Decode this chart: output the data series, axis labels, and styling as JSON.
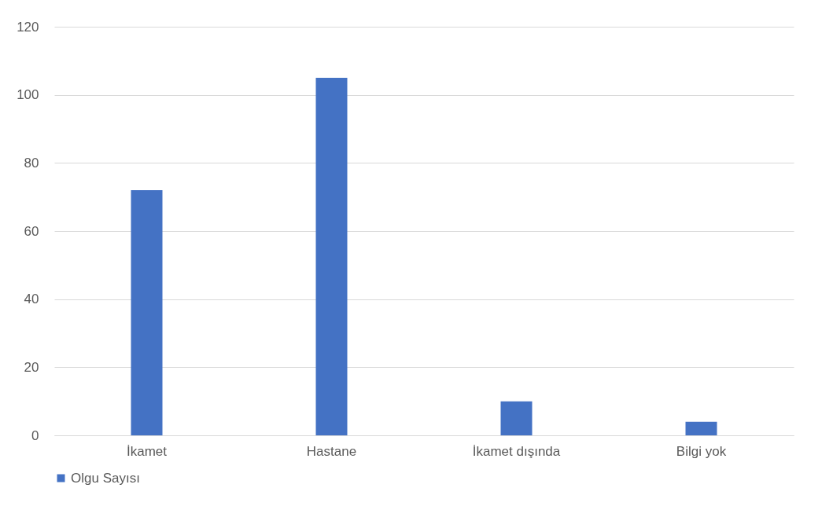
{
  "chart_data": {
    "type": "bar",
    "categories": [
      "İkamet",
      "Hastane",
      "İkamet dışında",
      "Bilgi yok"
    ],
    "series": [
      {
        "name": "Olgu Sayısı",
        "color": "#4472c4",
        "values": [
          72,
          105,
          10,
          4
        ]
      }
    ],
    "ylim": [
      0,
      120
    ],
    "yticks": [
      0,
      20,
      40,
      60,
      80,
      100,
      120
    ],
    "grid": "y",
    "legend": "bottom"
  }
}
